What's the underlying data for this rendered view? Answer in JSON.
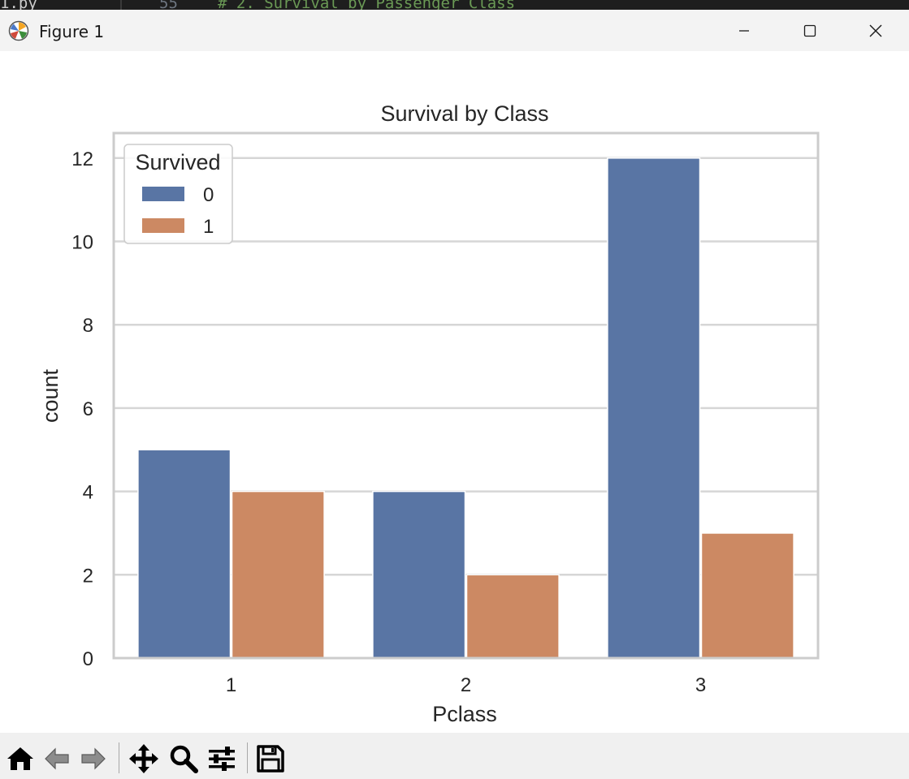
{
  "editor": {
    "filename": "1.py",
    "line_number": "55",
    "code_comment": "# 2. Survival by Passenger Class"
  },
  "window": {
    "title": "Figure 1",
    "controls": {
      "minimize": "minimize-icon",
      "maximize": "maximize-icon",
      "close": "close-icon"
    }
  },
  "toolbar": {
    "buttons": [
      "home-icon",
      "back-icon",
      "forward-icon",
      "pan-icon",
      "zoom-icon",
      "configure-subplots-icon",
      "save-icon"
    ]
  },
  "colors": {
    "survived_0": "#5975a4",
    "survived_1": "#cc8963",
    "grid": "#d6d6d6",
    "spine": "#cccccc"
  },
  "chart_data": {
    "type": "bar",
    "title": "Survival by Class",
    "xlabel": "Pclass",
    "ylabel": "count",
    "categories": [
      "1",
      "2",
      "3"
    ],
    "series": [
      {
        "name": "0",
        "values": [
          5,
          4,
          12
        ]
      },
      {
        "name": "1",
        "values": [
          4,
          2,
          3
        ]
      }
    ],
    "ylim": [
      0,
      12.6
    ],
    "yticks": [
      "0",
      "2",
      "4",
      "6",
      "8",
      "10",
      "12"
    ],
    "grid": true,
    "legend": {
      "title": "Survived",
      "position": "top-left"
    }
  }
}
